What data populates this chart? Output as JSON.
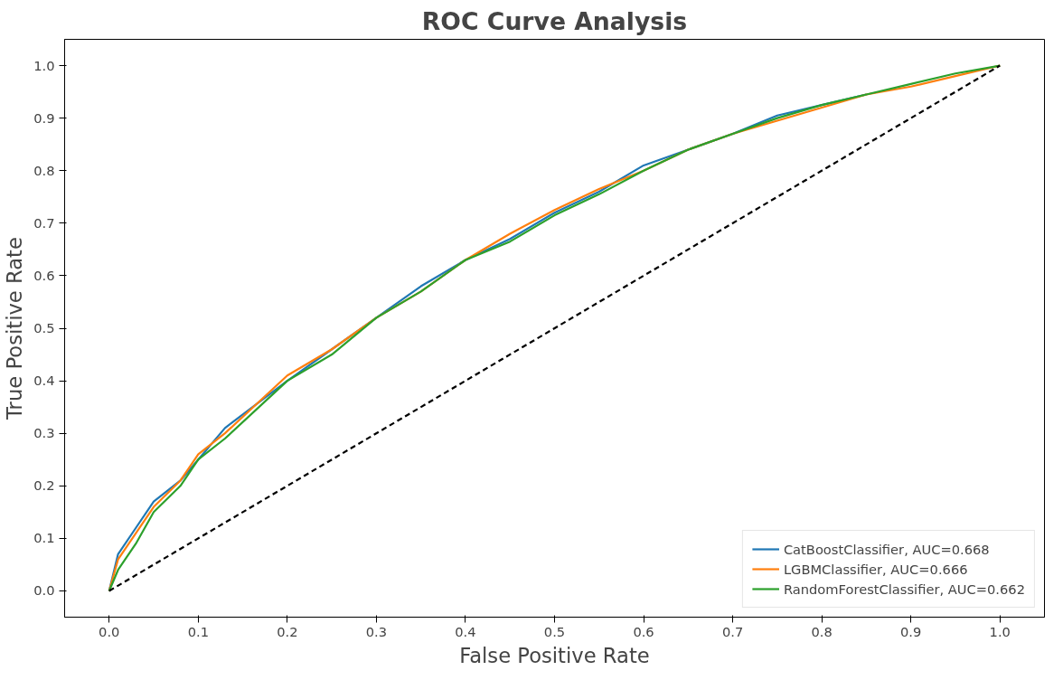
{
  "chart_data": {
    "type": "line",
    "title": "ROC Curve Analysis",
    "xlabel": "False Positive Rate",
    "ylabel": "True Positive Rate",
    "xlim": [
      -0.05,
      1.05
    ],
    "ylim": [
      -0.05,
      1.05
    ],
    "xticks": [
      {
        "value": 0,
        "label": "0.0"
      },
      0.1,
      0.2,
      0.3,
      0.4,
      0.5,
      0.6,
      0.7,
      0.8,
      0.9,
      {
        "value": 1,
        "label": "1.0"
      }
    ],
    "yticks": [
      {
        "value": 0,
        "label": "0.0"
      },
      0.1,
      0.2,
      0.3,
      0.4,
      0.5,
      0.6,
      0.7,
      0.8,
      0.9,
      {
        "value": 1,
        "label": "1.0"
      }
    ],
    "grid": false,
    "legend": "bottom right",
    "marker": "none",
    "series": [
      {
        "name": "CatBoostClassifier, AUC=0.668",
        "color": "#1f77b4",
        "x": [
          0,
          0.01,
          0.03,
          0.05,
          0.08,
          0.1,
          0.13,
          0.2,
          0.25,
          0.3,
          0.35,
          0.4,
          0.45,
          0.5,
          0.55,
          0.6,
          0.65,
          0.7,
          0.75,
          0.8,
          0.85
        ],
        "values": [
          0,
          0.07,
          0.12,
          0.17,
          0.21,
          0.25,
          0.31,
          0.4,
          0.46,
          0.52,
          0.58,
          0.63,
          0.67,
          0.72,
          0.76,
          0.81,
          0.84,
          0.87,
          0.905,
          0.925,
          0.945
        ]
      },
      {
        "name": "LGBMClassifier, AUC=0.666",
        "color": "#ff7f0e",
        "x": [
          0,
          0.01,
          0.03,
          0.05,
          0.08,
          0.1,
          0.13,
          0.2,
          0.25,
          0.3,
          0.35,
          0.4,
          0.45,
          0.5,
          0.55,
          0.6,
          0.65,
          0.7,
          0.75,
          0.8,
          0.85,
          0.9,
          0.95,
          1
        ],
        "values": [
          0,
          0.06,
          0.11,
          0.16,
          0.21,
          0.26,
          0.3,
          0.41,
          0.46,
          0.52,
          0.57,
          0.63,
          0.68,
          0.725,
          0.765,
          0.8,
          0.84,
          0.87,
          0.895,
          0.92,
          0.945,
          0.96,
          0.98,
          1
        ]
      },
      {
        "name": "RandomForestClassifier, AUC=0.662",
        "color": "#2ca02c",
        "x": [
          0,
          0.01,
          0.03,
          0.05,
          0.08,
          0.1,
          0.13,
          0.2,
          0.25,
          0.3,
          0.35,
          0.4,
          0.45,
          0.5,
          0.55,
          0.6,
          0.65,
          0.7,
          0.75,
          0.8,
          0.85,
          0.9,
          0.95,
          1
        ],
        "values": [
          0,
          0.04,
          0.09,
          0.15,
          0.2,
          0.25,
          0.29,
          0.4,
          0.45,
          0.52,
          0.57,
          0.63,
          0.665,
          0.715,
          0.755,
          0.8,
          0.84,
          0.87,
          0.9,
          0.925,
          0.945,
          0.965,
          0.985,
          1
        ]
      },
      {
        "color": "#000000",
        "line_style": "dashed",
        "x": [
          0,
          1
        ],
        "values": [
          0,
          1
        ]
      }
    ]
  }
}
